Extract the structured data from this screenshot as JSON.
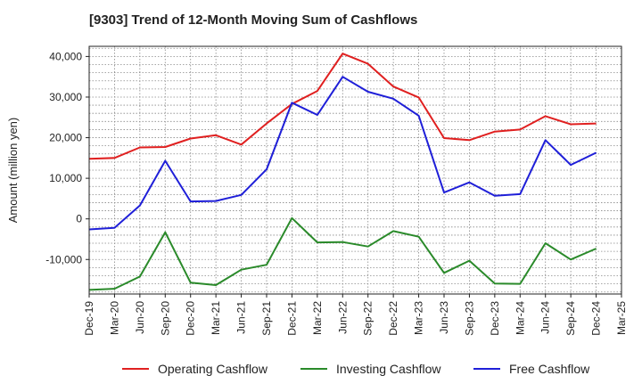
{
  "chart_data": {
    "type": "line",
    "title": "[9303]  Trend of 12-Month Moving Sum of Cashflows",
    "ylabel": "Amount (million yen)",
    "xlabel": "",
    "ylim": [
      -18500,
      42500
    ],
    "yticks": [
      -10000,
      0,
      10000,
      20000,
      30000,
      40000
    ],
    "ytick_labels": [
      "-10,000",
      "0",
      "10,000",
      "20,000",
      "30,000",
      "40,000"
    ],
    "categories": [
      "Dec-19",
      "Mar-20",
      "Jun-20",
      "Sep-20",
      "Dec-20",
      "Mar-21",
      "Jun-21",
      "Sep-21",
      "Dec-21",
      "Mar-22",
      "Jun-22",
      "Sep-22",
      "Dec-22",
      "Mar-23",
      "Jun-23",
      "Sep-23",
      "Dec-23",
      "Mar-24",
      "Jun-24",
      "Sep-24",
      "Dec-24",
      "Mar-25"
    ],
    "grid": true,
    "legend_position": "bottom",
    "series": [
      {
        "name": "Operating Cashflow",
        "color": "#e02020",
        "values": [
          14800,
          15000,
          17600,
          17700,
          19800,
          20600,
          18300,
          23500,
          28300,
          31500,
          40700,
          38200,
          32600,
          29900,
          19900,
          19400,
          21500,
          22000,
          25300,
          23300,
          23500,
          null
        ]
      },
      {
        "name": "Investing Cashflow",
        "color": "#2a8a2a",
        "values": [
          -17500,
          -17200,
          -14200,
          -3300,
          -15700,
          -16300,
          -12500,
          -11300,
          200,
          -5800,
          -5700,
          -6800,
          -3000,
          -4400,
          -13300,
          -10300,
          -15900,
          -16000,
          -6000,
          -10000,
          -7300,
          null
        ]
      },
      {
        "name": "Free Cashflow",
        "color": "#1f1fd8",
        "values": [
          -2600,
          -2200,
          3300,
          14300,
          4300,
          4400,
          5900,
          12200,
          28600,
          25600,
          35000,
          31300,
          29600,
          25400,
          6500,
          9000,
          5700,
          6100,
          19400,
          13300,
          16300,
          null
        ]
      }
    ]
  }
}
